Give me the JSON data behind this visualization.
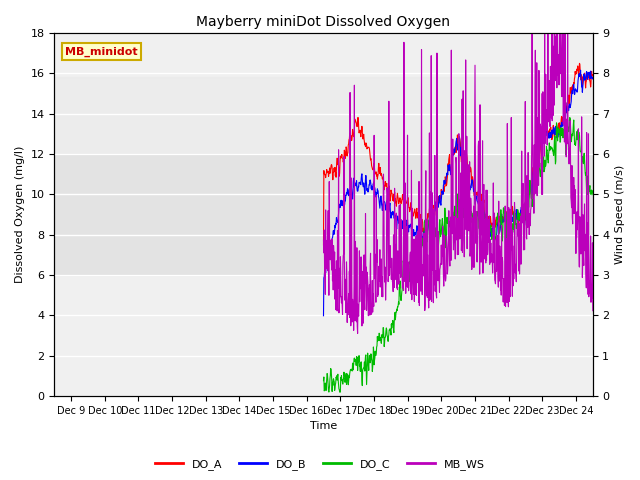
{
  "title": "Mayberry miniDot Dissolved Oxygen",
  "xlabel": "Time",
  "ylabel_left": "Dissolved Oxygen (mg/l)",
  "ylabel_right": "Wind Speed (m/s)",
  "ylim_left": [
    0,
    18
  ],
  "ylim_right": [
    0.0,
    9.0
  ],
  "yticks_left": [
    0,
    2,
    4,
    6,
    8,
    10,
    12,
    14,
    16,
    18
  ],
  "yticks_right": [
    0.0,
    1.0,
    2.0,
    3.0,
    4.0,
    5.0,
    6.0,
    7.0,
    8.0,
    9.0
  ],
  "xtick_positions": [
    1,
    2,
    3,
    4,
    5,
    6,
    7,
    8,
    9,
    10,
    11,
    12,
    13,
    14,
    15,
    16
  ],
  "xtick_labels": [
    "Dec 9",
    "Dec 10",
    "Dec 11",
    "Dec 12",
    "Dec 13",
    "Dec 14",
    "Dec 15",
    "Dec 16",
    "Dec 17",
    "Dec 18",
    "Dec 19",
    "Dec 20",
    "Dec 21",
    "Dec 22",
    "Dec 23",
    "Dec 24"
  ],
  "xlim": [
    0.5,
    16.5
  ],
  "color_DO_A": "#ff0000",
  "color_DO_B": "#0000ff",
  "color_DO_C": "#00bb00",
  "color_MB_WS": "#bb00bb",
  "color_shading1": "#d8d8d8",
  "color_shading2": "#e8e8e8",
  "shading1_ymin": 6,
  "shading1_ymax": 12,
  "shading2_ymin": 12,
  "shading2_ymax": 15.8,
  "annotation_text": "MB_minidot",
  "annotation_bg": "#ffffcc",
  "annotation_border": "#ccaa00",
  "figwidth": 6.4,
  "figheight": 4.8,
  "dpi": 100
}
